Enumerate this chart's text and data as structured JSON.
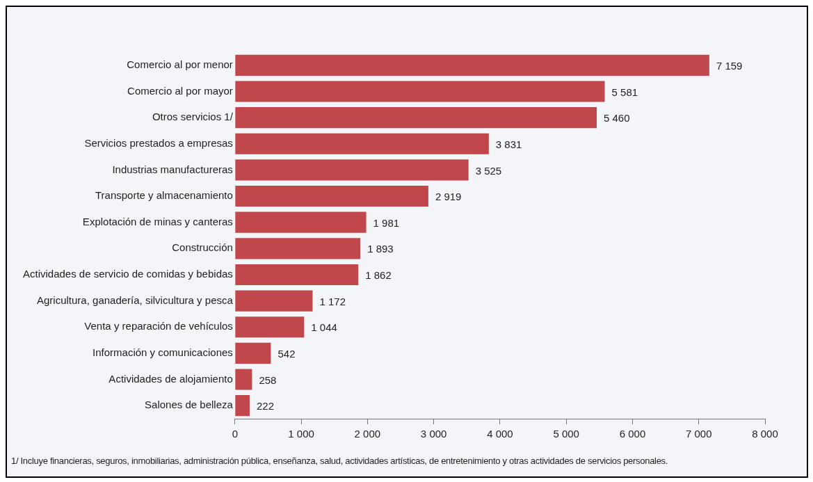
{
  "chart_data": {
    "type": "bar",
    "orientation": "horizontal",
    "categories": [
      "Comercio al por menor",
      "Comercio al por mayor",
      "Otros servicios 1/",
      "Servicios prestados a empresas",
      "Industrias manufactureras",
      "Transporte y almacenamiento",
      "Explotación de minas y canteras",
      "Construcción",
      "Actividades de servicio de comidas y bebidas",
      "Agricultura, ganadería, silvicultura y pesca",
      "Venta y reparación de vehículos",
      "Información y comunicaciones",
      "Actividades de alojamiento",
      "Salones de belleza"
    ],
    "values": [
      7159,
      5581,
      5460,
      3831,
      3525,
      2919,
      1981,
      1893,
      1862,
      1172,
      1044,
      542,
      258,
      222
    ],
    "value_labels": [
      "7 159",
      "5 581",
      "5 460",
      "3 831",
      "3 525",
      "2 919",
      "1 981",
      "1 893",
      "1 862",
      "1 172",
      "1 044",
      "542",
      "258",
      "222"
    ],
    "color": "#c0474b",
    "xlim": [
      0,
      8000
    ],
    "xticks": [
      0,
      {
        "value": 1000,
        "label": "1 000"
      },
      {
        "value": 2000,
        "label": "2 000"
      },
      {
        "value": 3000,
        "label": "3 000"
      },
      {
        "value": 4000,
        "label": "4 000"
      },
      {
        "value": 5000,
        "label": "5 000"
      },
      {
        "value": 6000,
        "label": "6 000"
      },
      {
        "value": 7000,
        "label": "7 000"
      },
      {
        "value": 8000,
        "label": "8 000"
      }
    ],
    "grid": false,
    "legend": false,
    "annotations": [
      "1/ Incluye financieras, seguros, inmobiliarias, administración pública, enseñanza, salud, actividades artísticas, de entretenimiento y otras actividades de servicios personales."
    ]
  }
}
